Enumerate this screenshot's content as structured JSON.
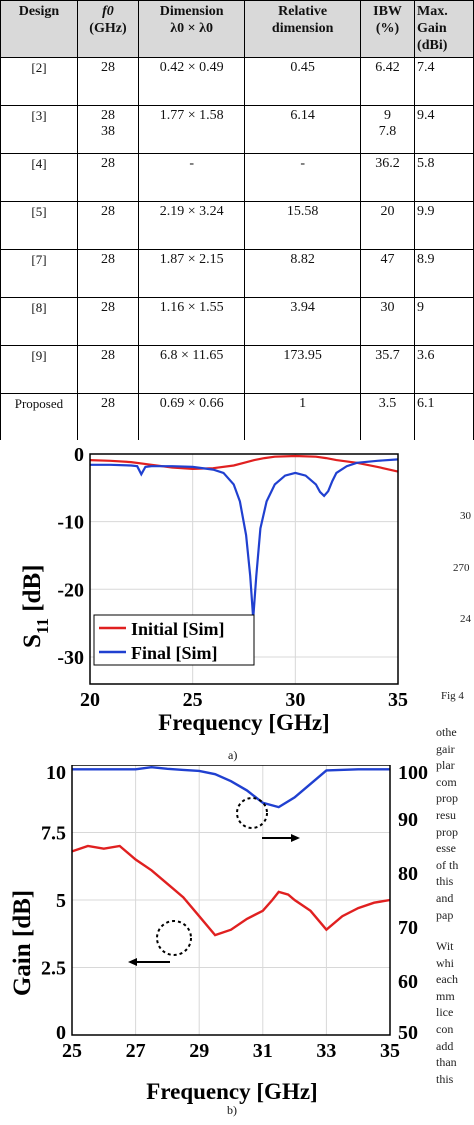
{
  "table": {
    "headers": [
      [
        "Design"
      ],
      [
        "f0",
        "(GHz)"
      ],
      [
        "Dimension",
        "λ0 × λ0"
      ],
      [
        "Relative",
        "dimension"
      ],
      [
        "IBW",
        "(%)"
      ],
      [
        "Max.",
        "Gain",
        "(dBi)"
      ]
    ],
    "rows": [
      {
        "design": "[2]",
        "f0": "28",
        "dim": "0.42 × 0.49",
        "rel": "0.45",
        "ibw": "6.42",
        "gain": "7.4"
      },
      {
        "design": "[3]",
        "f0": "28\n38",
        "dim": "1.77 × 1.58",
        "rel": "6.14",
        "ibw": "9\n7.8",
        "gain": "9.4"
      },
      {
        "design": "[4]",
        "f0": "28",
        "dim": "-",
        "rel": "-",
        "ibw": "36.2",
        "gain": "5.8"
      },
      {
        "design": "[5]",
        "f0": "28",
        "dim": "2.19 × 3.24",
        "rel": "15.58",
        "ibw": "20",
        "gain": "9.9"
      },
      {
        "design": "[7]",
        "f0": "28",
        "dim": "1.87 × 2.15",
        "rel": "8.82",
        "ibw": "47",
        "gain": "8.9"
      },
      {
        "design": "[8]",
        "f0": "28",
        "dim": "1.16 × 1.55",
        "rel": "3.94",
        "ibw": "30",
        "gain": "9"
      },
      {
        "design": "[9]",
        "f0": "28",
        "dim": "6.8 × 11.65",
        "rel": "173.95",
        "ibw": "35.7",
        "gain": "3.6"
      },
      {
        "design": "Proposed",
        "f0": "28",
        "dim": "0.69 × 0.66",
        "rel": "1",
        "ibw": "3.5",
        "gain": "6.1"
      }
    ]
  },
  "chart_data": [
    {
      "type": "line",
      "xlabel": "Frequency [GHz]",
      "ylabel": "S11 [dB]",
      "xlim": [
        20,
        35
      ],
      "ylim": [
        -34,
        0
      ],
      "xticks": [
        "20",
        "25",
        "30",
        "35"
      ],
      "yticks": [
        "0",
        "-10",
        "-20",
        "-30"
      ],
      "grid": true,
      "legend": "bottom-left",
      "series": [
        {
          "name": "Initial [Sim]",
          "color": "#e02020",
          "x": [
            20,
            21,
            22,
            23,
            24,
            25,
            26,
            27,
            27.5,
            28,
            28.5,
            29,
            30,
            31,
            31.5,
            32,
            33,
            34,
            35
          ],
          "y": [
            -0.9,
            -1.0,
            -1.2,
            -1.6,
            -2.0,
            -2.2,
            -2.1,
            -1.7,
            -1.3,
            -0.9,
            -0.6,
            -0.4,
            -0.3,
            -0.4,
            -0.6,
            -0.9,
            -1.3,
            -1.9,
            -2.6
          ]
        },
        {
          "name": "Final [Sim]",
          "color": "#2040d0",
          "x": [
            20,
            21,
            22,
            22.3,
            22.5,
            22.7,
            23,
            24,
            25,
            26,
            26.5,
            27,
            27.3,
            27.6,
            27.8,
            27.95,
            28.1,
            28.3,
            28.6,
            29,
            29.5,
            30,
            30.5,
            31,
            31.2,
            31.4,
            31.6,
            31.8,
            32,
            32.5,
            33,
            34,
            35
          ],
          "y": [
            -1.6,
            -1.6,
            -1.7,
            -1.8,
            -3.0,
            -1.9,
            -1.8,
            -1.8,
            -1.9,
            -2.3,
            -2.8,
            -4.5,
            -7,
            -12,
            -18,
            -24.3,
            -18,
            -11,
            -7,
            -4.5,
            -3.2,
            -2.8,
            -3.2,
            -4.5,
            -5.6,
            -6.2,
            -5.5,
            -4.0,
            -2.8,
            -1.8,
            -1.3,
            -1.0,
            -0.8
          ]
        }
      ]
    },
    {
      "type": "line",
      "xlabel": "Frequency [GHz]",
      "ylabel": "Gain [dB]",
      "xlim": [
        25,
        35
      ],
      "ylim": [
        0,
        10
      ],
      "y2lim": [
        50,
        100
      ],
      "xticks": [
        "25",
        "27",
        "29",
        "31",
        "33",
        "35"
      ],
      "yticks": [
        "0",
        "2.5",
        "5",
        "7.5",
        "10"
      ],
      "y2ticks": [
        "50",
        "60",
        "70",
        "80",
        "90",
        "100"
      ],
      "grid": true,
      "series": [
        {
          "color": "#e02020",
          "axis": "left",
          "x": [
            25,
            25.5,
            26,
            26.5,
            27,
            27.5,
            28,
            28.5,
            29,
            29.5,
            30,
            30.5,
            31,
            31.3,
            31.5,
            31.8,
            32,
            32.5,
            33,
            33.5,
            34,
            34.5,
            35
          ],
          "y": [
            6.8,
            7.0,
            6.9,
            7.0,
            6.5,
            6.1,
            5.6,
            5.1,
            4.4,
            3.7,
            3.9,
            4.3,
            4.6,
            5.0,
            5.3,
            5.2,
            5.0,
            4.6,
            3.9,
            4.4,
            4.7,
            4.9,
            5.0
          ]
        },
        {
          "color": "#2040d0",
          "axis": "right",
          "x": [
            25,
            26,
            27,
            27.5,
            28,
            28.5,
            29,
            29.5,
            30,
            30.5,
            31,
            31.5,
            32,
            32.5,
            33,
            34,
            35
          ],
          "y": [
            99.2,
            99.2,
            99.2,
            99.6,
            99.3,
            99.1,
            98.9,
            98.3,
            97.0,
            95.3,
            93.0,
            92.2,
            94.0,
            96.5,
            99.0,
            99.2,
            99.2
          ]
        }
      ]
    }
  ],
  "captions": {
    "a": "a)",
    "b": "b)"
  },
  "side_text": {
    "axis_frags": [
      "30",
      "270",
      "24"
    ],
    "fig_frag": "Fig 4",
    "lines": [
      "othe",
      "gair",
      "plar",
      "com",
      "prop",
      "resu",
      "prop",
      "esse",
      "of th",
      "this",
      "and",
      "pap"
    ],
    "lines2": [
      "Wit",
      "whi",
      "each",
      "mm",
      "lice",
      "con",
      "add",
      "than",
      "this"
    ]
  }
}
